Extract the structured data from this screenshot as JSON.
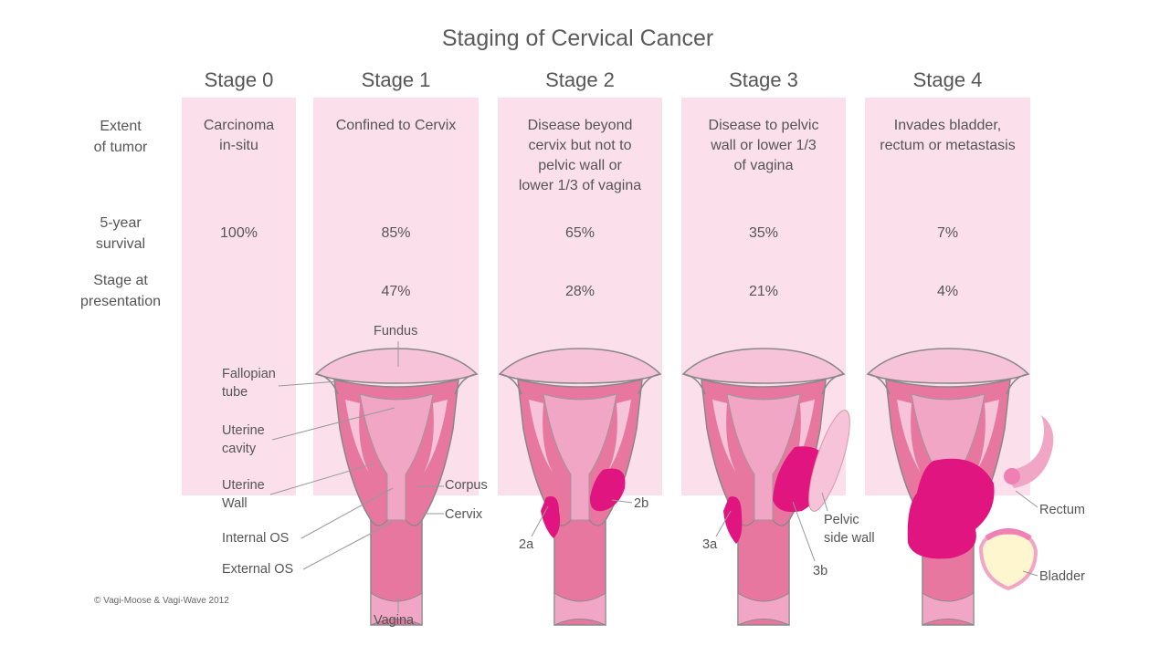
{
  "title": "Staging of Cervical Cancer",
  "row_labels": {
    "extent": "Extent\nof tumor",
    "survival": "5-year\nsurvival",
    "presentation": "Stage at\npresentation"
  },
  "stages": [
    {
      "name": "Stage 0",
      "extent": "Carcinoma\nin-situ",
      "survival": "100%",
      "presentation": ""
    },
    {
      "name": "Stage 1",
      "extent": "Confined to Cervix",
      "survival": "85%",
      "presentation": "47%"
    },
    {
      "name": "Stage 2",
      "extent": "Disease beyond\ncervix but not to\npelvic wall or\nlower 1/3 of vagina",
      "survival": "65%",
      "presentation": "28%"
    },
    {
      "name": "Stage 3",
      "extent": "Disease to pelvic\nwall or lower 1/3\nof vagina",
      "survival": "35%",
      "presentation": "21%"
    },
    {
      "name": "Stage 4",
      "extent": "Invades bladder,\nrectum or metastasis",
      "survival": "7%",
      "presentation": "4%"
    }
  ],
  "anatomy_labels": {
    "fundus": "Fundus",
    "fallopian_tube": "Fallopian\ntube",
    "uterine_cavity": "Uterine\ncavity",
    "uterine_wall": "Uterine\nWall",
    "internal_os": "Internal OS",
    "external_os": "External OS",
    "vagina": "Vagina",
    "corpus": "Corpus",
    "cervix": "Cervix"
  },
  "tumor_labels": {
    "2a": "2a",
    "2b": "2b",
    "3a": "3a",
    "3b": "3b",
    "pelvic_side_wall": "Pelvic\nside wall",
    "rectum": "Rectum",
    "bladder": "Bladder"
  },
  "copyright": "© Vagi-Moose & Vagi-Wave 2012",
  "colors": {
    "column_bg": "#fbdfea",
    "uterus": "#e8779f",
    "uterus_light": "#f6c3d8",
    "tumor": "#e0157f",
    "outline": "#888888"
  }
}
